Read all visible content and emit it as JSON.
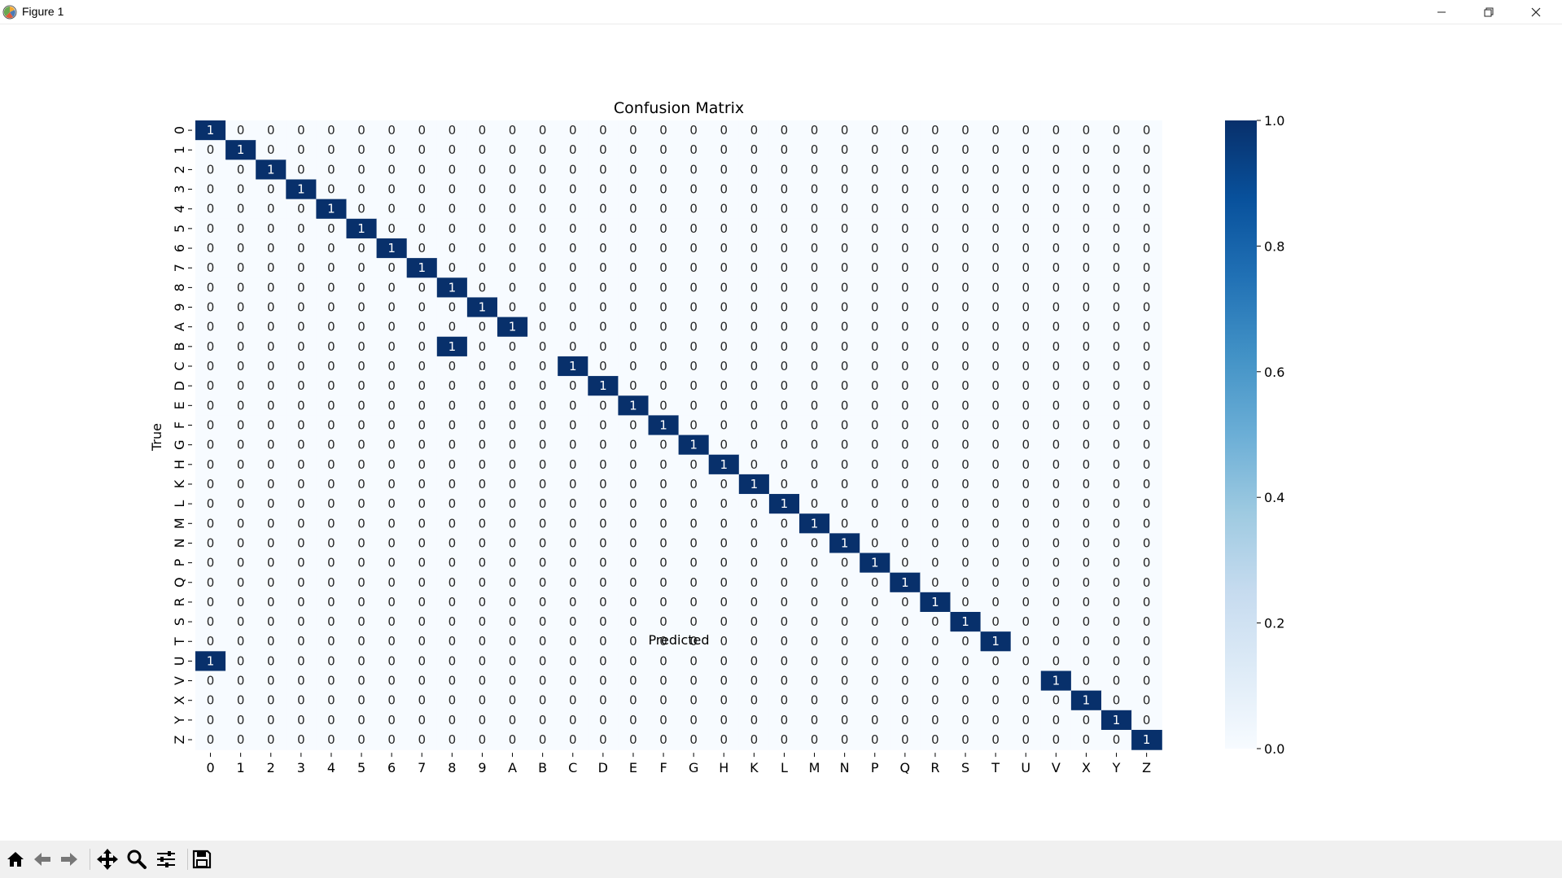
{
  "window": {
    "title": "Figure 1"
  },
  "toolbar": {
    "buttons": [
      "home-icon",
      "back-arrow-icon",
      "forward-arrow-icon",
      "pan-icon",
      "zoom-icon",
      "configure-subplots-icon",
      "save-icon"
    ]
  },
  "chart_data": {
    "type": "heatmap",
    "title": "Confusion Matrix",
    "xlabel": "Predicted",
    "ylabel": "True",
    "x_categories": [
      "0",
      "1",
      "2",
      "3",
      "4",
      "5",
      "6",
      "7",
      "8",
      "9",
      "A",
      "B",
      "C",
      "D",
      "E",
      "F",
      "G",
      "H",
      "K",
      "L",
      "M",
      "N",
      "P",
      "Q",
      "R",
      "S",
      "T",
      "U",
      "V",
      "X",
      "Y",
      "Z"
    ],
    "y_categories": [
      "0",
      "1",
      "2",
      "3",
      "4",
      "5",
      "6",
      "7",
      "8",
      "9",
      "A",
      "B",
      "C",
      "D",
      "E",
      "F",
      "G",
      "H",
      "K",
      "L",
      "M",
      "N",
      "P",
      "Q",
      "R",
      "S",
      "T",
      "U",
      "V",
      "X",
      "Y",
      "Z"
    ],
    "nonzero_cells": [
      {
        "true": "0",
        "predicted": "0",
        "value": 1
      },
      {
        "true": "1",
        "predicted": "1",
        "value": 1
      },
      {
        "true": "2",
        "predicted": "2",
        "value": 1
      },
      {
        "true": "3",
        "predicted": "3",
        "value": 1
      },
      {
        "true": "4",
        "predicted": "4",
        "value": 1
      },
      {
        "true": "5",
        "predicted": "5",
        "value": 1
      },
      {
        "true": "6",
        "predicted": "6",
        "value": 1
      },
      {
        "true": "7",
        "predicted": "7",
        "value": 1
      },
      {
        "true": "8",
        "predicted": "8",
        "value": 1
      },
      {
        "true": "9",
        "predicted": "9",
        "value": 1
      },
      {
        "true": "A",
        "predicted": "A",
        "value": 1
      },
      {
        "true": "B",
        "predicted": "8",
        "value": 1
      },
      {
        "true": "C",
        "predicted": "C",
        "value": 1
      },
      {
        "true": "D",
        "predicted": "D",
        "value": 1
      },
      {
        "true": "E",
        "predicted": "E",
        "value": 1
      },
      {
        "true": "F",
        "predicted": "F",
        "value": 1
      },
      {
        "true": "G",
        "predicted": "G",
        "value": 1
      },
      {
        "true": "H",
        "predicted": "H",
        "value": 1
      },
      {
        "true": "K",
        "predicted": "K",
        "value": 1
      },
      {
        "true": "L",
        "predicted": "L",
        "value": 1
      },
      {
        "true": "M",
        "predicted": "M",
        "value": 1
      },
      {
        "true": "N",
        "predicted": "N",
        "value": 1
      },
      {
        "true": "P",
        "predicted": "P",
        "value": 1
      },
      {
        "true": "Q",
        "predicted": "Q",
        "value": 1
      },
      {
        "true": "R",
        "predicted": "R",
        "value": 1
      },
      {
        "true": "S",
        "predicted": "S",
        "value": 1
      },
      {
        "true": "T",
        "predicted": "T",
        "value": 1
      },
      {
        "true": "U",
        "predicted": "0",
        "value": 1
      },
      {
        "true": "V",
        "predicted": "V",
        "value": 1
      },
      {
        "true": "X",
        "predicted": "X",
        "value": 1
      },
      {
        "true": "Y",
        "predicted": "Y",
        "value": 1
      },
      {
        "true": "Z",
        "predicted": "Z",
        "value": 1
      }
    ],
    "default_value": 0,
    "colorbar": {
      "colormap": "Blues",
      "min": 0.0,
      "max": 1.0,
      "ticks": [
        "0.0",
        "0.2",
        "0.4",
        "0.6",
        "0.8",
        "1.0"
      ],
      "low_color": "#f7fbff",
      "high_color": "#08306b"
    },
    "grid": false,
    "legend": "none"
  }
}
